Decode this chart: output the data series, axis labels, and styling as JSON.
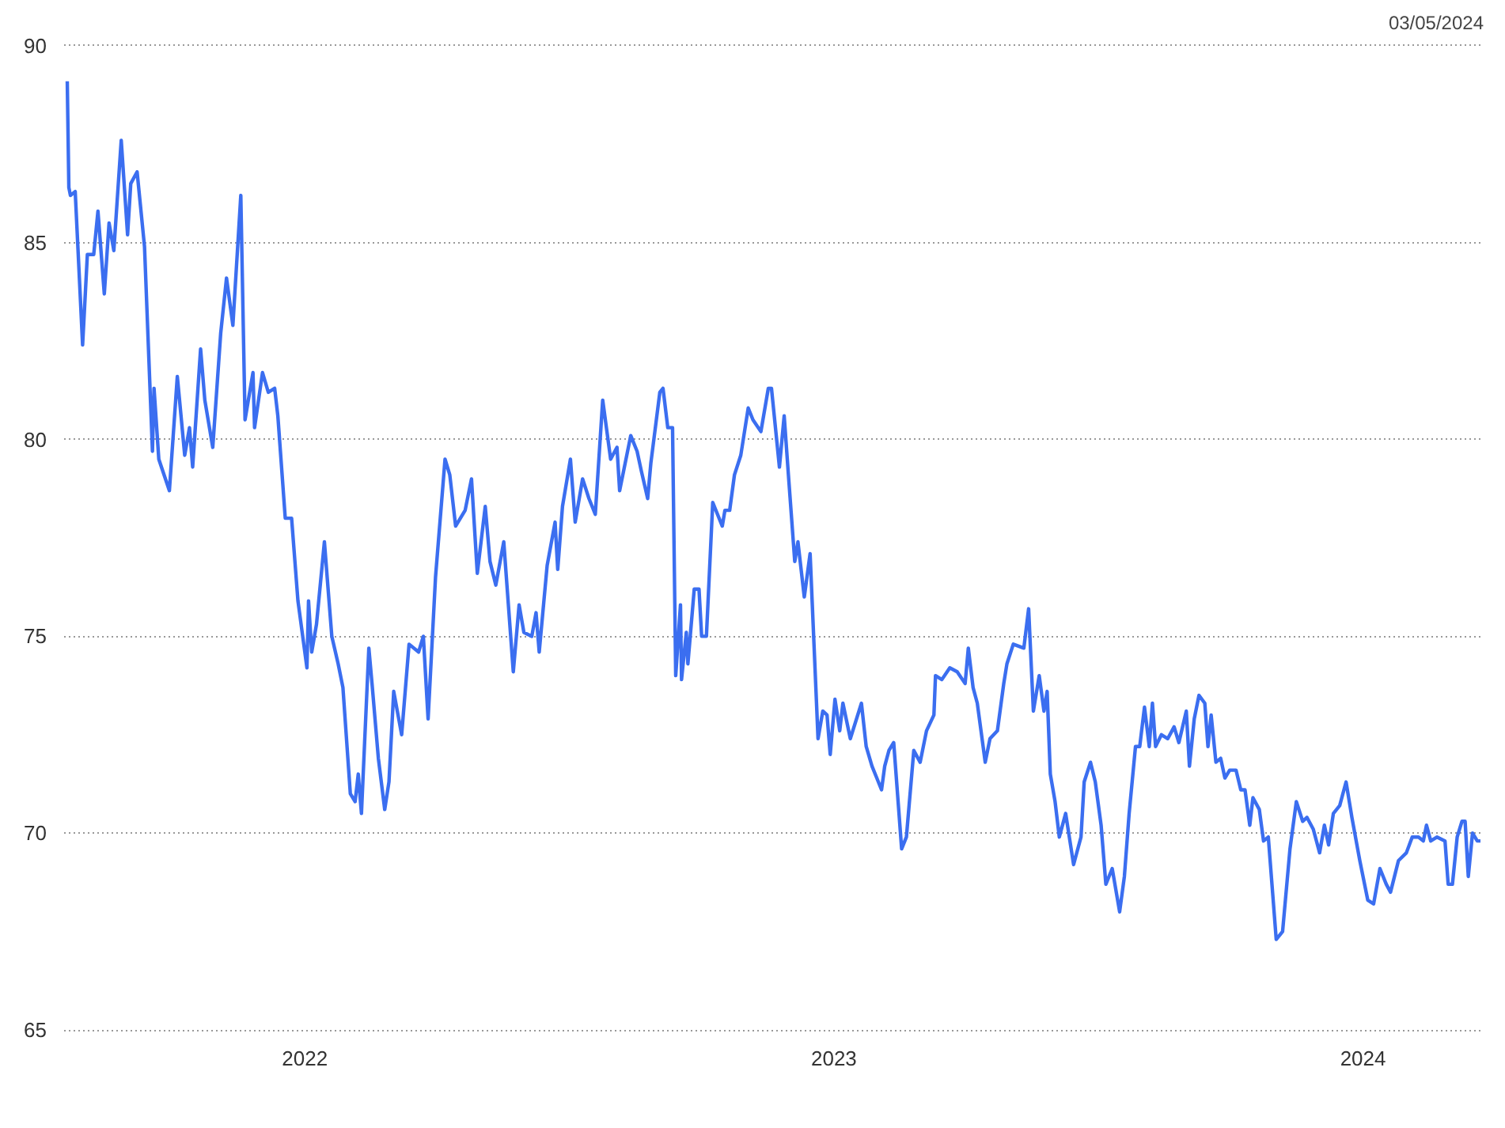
{
  "chart_data": {
    "type": "line",
    "annotations": [
      "03/05/2024"
    ],
    "xlim": [
      2021.545,
      2024.228
    ],
    "xticks": [
      2022,
      2023,
      2024
    ],
    "ylim": [
      64.9,
      90.1
    ],
    "yticks": [
      65,
      70,
      75,
      80,
      85,
      90
    ],
    "grid": "y",
    "marker": "none",
    "line_style": "solid",
    "series": [
      {
        "color": "#3b6ef0",
        "x": [
          2021.551,
          2021.554,
          2021.557,
          2021.566,
          2021.58,
          2021.589,
          2021.601,
          2021.609,
          2021.621,
          2021.63,
          2021.639,
          2021.653,
          2021.665,
          2021.671,
          2021.683,
          2021.697,
          2021.712,
          2021.715,
          2021.724,
          2021.744,
          2021.759,
          2021.773,
          2021.782,
          2021.788,
          2021.803,
          2021.811,
          2021.826,
          2021.841,
          2021.852,
          2021.864,
          2021.879,
          2021.887,
          2021.902,
          2021.905,
          2021.92,
          2021.931,
          2021.943,
          2021.949,
          2021.963,
          2021.975,
          2021.987,
          2022.004,
          2022.007,
          2022.013,
          2022.022,
          2022.037,
          2022.051,
          2022.063,
          2022.072,
          2022.086,
          2022.095,
          2022.101,
          2022.107,
          2022.113,
          2022.121,
          2022.127,
          2022.139,
          2022.151,
          2022.159,
          2022.168,
          2022.183,
          2022.197,
          2022.215,
          2022.224,
          2022.233,
          2022.247,
          2022.265,
          2022.274,
          2022.285,
          2022.303,
          2022.315,
          2022.326,
          2022.341,
          2022.35,
          2022.361,
          2022.376,
          2022.394,
          2022.405,
          2022.414,
          2022.429,
          2022.437,
          2022.443,
          2022.458,
          2022.473,
          2022.478,
          2022.487,
          2022.502,
          2022.511,
          2022.525,
          2022.537,
          2022.549,
          2022.563,
          2022.578,
          2022.59,
          2022.595,
          2022.616,
          2022.628,
          2022.636,
          2022.648,
          2022.654,
          2022.671,
          2022.677,
          2022.686,
          2022.695,
          2022.701,
          2022.71,
          2022.712,
          2022.721,
          2022.724,
          2022.736,
          2022.745,
          2022.75,
          2022.759,
          2022.771,
          2022.789,
          2022.794,
          2022.803,
          2022.812,
          2022.824,
          2022.838,
          2022.847,
          2022.862,
          2022.876,
          2022.882,
          2022.897,
          2022.906,
          2022.914,
          2022.926,
          2022.932,
          2022.944,
          2022.955,
          2022.97,
          2022.979,
          2022.987,
          2022.993,
          2023.002,
          2023.011,
          2023.017,
          2023.031,
          2023.052,
          2023.061,
          2023.072,
          2023.081,
          2023.09,
          2023.096,
          2023.104,
          2023.113,
          2023.128,
          2023.137,
          2023.151,
          2023.163,
          2023.175,
          2023.189,
          2023.192,
          2023.204,
          2023.219,
          2023.233,
          2023.248,
          2023.254,
          2023.263,
          2023.271,
          2023.286,
          2023.295,
          2023.309,
          2023.321,
          2023.327,
          2023.339,
          2023.359,
          2023.368,
          2023.377,
          2023.388,
          2023.397,
          2023.403,
          2023.409,
          2023.418,
          2023.426,
          2023.438,
          2023.453,
          2023.467,
          2023.473,
          2023.485,
          2023.494,
          2023.505,
          2023.514,
          2023.526,
          2023.54,
          2023.549,
          2023.558,
          2023.57,
          2023.578,
          2023.587,
          2023.596,
          2023.602,
          2023.608,
          2023.619,
          2023.631,
          2023.643,
          2023.652,
          2023.666,
          2023.672,
          2023.681,
          2023.69,
          2023.701,
          2023.707,
          2023.713,
          2023.722,
          2023.731,
          2023.739,
          2023.748,
          2023.76,
          2023.769,
          2023.777,
          2023.786,
          2023.792,
          2023.804,
          2023.812,
          2023.821,
          2023.836,
          2023.848,
          2023.862,
          2023.874,
          2023.886,
          2023.894,
          2023.906,
          2023.918,
          2023.927,
          2023.935,
          2023.944,
          2023.956,
          2023.968,
          2023.979,
          2023.994,
          2024.009,
          2024.02,
          2024.032,
          2024.044,
          2024.052,
          2024.067,
          2024.082,
          2024.093,
          2024.105,
          2024.114,
          2024.12,
          2024.128,
          2024.14,
          2024.155,
          2024.161,
          2024.169,
          2024.178,
          2024.187,
          2024.193,
          2024.199,
          2024.207,
          2024.216,
          2024.222
        ],
        "values": [
          89.1,
          86.4,
          86.2,
          86.3,
          82.4,
          84.7,
          84.7,
          85.8,
          83.7,
          85.5,
          84.8,
          87.6,
          85.2,
          86.5,
          86.8,
          84.9,
          79.7,
          81.3,
          79.5,
          78.7,
          81.6,
          79.6,
          80.3,
          79.3,
          82.3,
          81.0,
          79.8,
          82.7,
          84.1,
          82.9,
          86.2,
          80.5,
          81.7,
          80.3,
          81.7,
          81.2,
          81.3,
          80.6,
          78.0,
          78.0,
          75.9,
          74.2,
          75.9,
          74.6,
          75.3,
          77.4,
          75.0,
          74.3,
          73.7,
          71.0,
          70.8,
          71.5,
          70.5,
          72.3,
          74.7,
          73.8,
          71.9,
          70.6,
          71.3,
          73.6,
          72.5,
          74.8,
          74.6,
          75.0,
          72.9,
          76.5,
          79.5,
          79.1,
          77.8,
          78.2,
          79.0,
          76.6,
          78.3,
          76.9,
          76.3,
          77.4,
          74.1,
          75.8,
          75.1,
          75.0,
          75.6,
          74.6,
          76.8,
          77.9,
          76.7,
          78.3,
          79.5,
          77.9,
          79.0,
          78.5,
          78.1,
          81.0,
          79.5,
          79.8,
          78.7,
          80.1,
          79.7,
          79.2,
          78.5,
          79.4,
          81.2,
          81.3,
          80.3,
          80.3,
          74.0,
          75.8,
          73.9,
          75.1,
          74.3,
          76.2,
          76.2,
          75.0,
          75.0,
          78.4,
          77.8,
          78.2,
          78.2,
          79.1,
          79.6,
          80.8,
          80.5,
          80.2,
          81.3,
          81.3,
          79.3,
          80.6,
          79.1,
          76.9,
          77.4,
          76.0,
          77.1,
          72.4,
          73.1,
          73.0,
          72.0,
          73.4,
          72.6,
          73.3,
          72.4,
          73.3,
          72.2,
          71.7,
          71.4,
          71.1,
          71.7,
          72.1,
          72.3,
          69.6,
          69.9,
          72.1,
          71.8,
          72.6,
          73.0,
          74.0,
          73.9,
          74.2,
          74.1,
          73.8,
          74.7,
          73.7,
          73.3,
          71.8,
          72.4,
          72.6,
          73.8,
          74.3,
          74.8,
          74.7,
          75.7,
          73.1,
          74.0,
          73.1,
          73.6,
          71.5,
          70.8,
          69.9,
          70.5,
          69.2,
          69.9,
          71.3,
          71.8,
          71.3,
          70.2,
          68.7,
          69.1,
          68.0,
          68.9,
          70.5,
          72.2,
          72.2,
          73.2,
          72.2,
          73.3,
          72.2,
          72.5,
          72.4,
          72.7,
          72.3,
          73.1,
          71.7,
          72.9,
          73.5,
          73.3,
          72.2,
          73.0,
          71.8,
          71.9,
          71.4,
          71.6,
          71.6,
          71.1,
          71.1,
          70.2,
          70.9,
          70.6,
          69.8,
          69.9,
          67.3,
          67.5,
          69.6,
          70.8,
          70.3,
          70.4,
          70.1,
          69.5,
          70.2,
          69.7,
          70.5,
          70.7,
          71.3,
          70.4,
          69.3,
          68.3,
          68.2,
          69.1,
          68.7,
          68.5,
          69.3,
          69.5,
          69.9,
          69.9,
          69.8,
          70.2,
          69.8,
          69.9,
          69.8,
          68.7,
          68.7,
          69.9,
          70.3,
          70.3,
          68.9,
          70.0,
          69.8,
          69.8
        ]
      }
    ]
  }
}
